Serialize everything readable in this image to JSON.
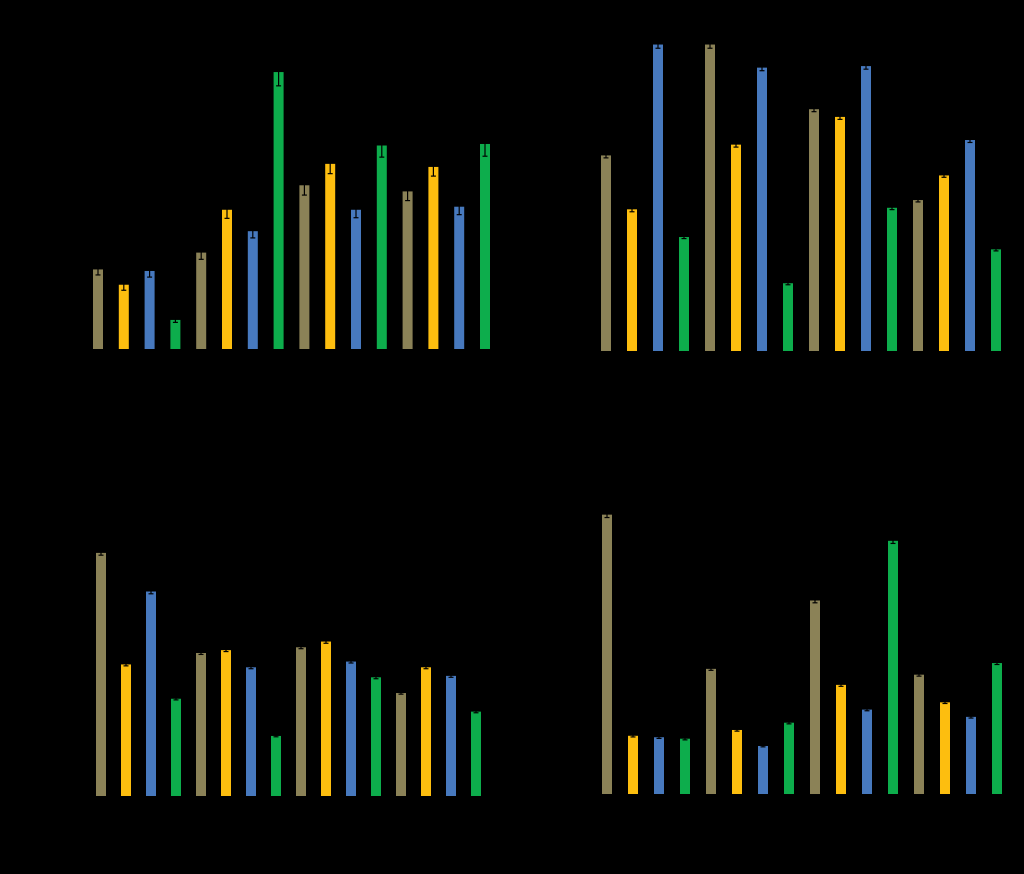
{
  "colors": {
    "background": "#000000",
    "olive": "#8B8257",
    "gold": "#FDBE0F",
    "blue": "#4779BE",
    "green": "#0DAD4C",
    "errorbar": "#000000"
  },
  "chart_data": [
    {
      "type": "bar",
      "panel": "top-left",
      "grid": false,
      "legend": "none",
      "ylim": [
        0,
        100
      ],
      "values": [
        26,
        21,
        25.5,
        9.5,
        31.5,
        45.5,
        38.5,
        90.5,
        53.5,
        60.5,
        45.5,
        66.5,
        51.5,
        59.5,
        46.5,
        67
      ],
      "errors": [
        1.8,
        1.8,
        2,
        0.8,
        2.2,
        2.8,
        2.2,
        4.5,
        3.2,
        3.2,
        2.6,
        3.8,
        3,
        3,
        2.6,
        4
      ],
      "color_keys": [
        "olive",
        "gold",
        "blue",
        "green",
        "olive",
        "gold",
        "blue",
        "green",
        "olive",
        "gold",
        "blue",
        "green",
        "olive",
        "gold",
        "blue",
        "green"
      ]
    },
    {
      "type": "bar",
      "panel": "top-right",
      "grid": false,
      "legend": "none",
      "ylim": [
        0,
        100
      ],
      "values": [
        63.5,
        46,
        99.5,
        37,
        99.5,
        67,
        92,
        22,
        78.5,
        76,
        92.5,
        46.5,
        49,
        57,
        68.5,
        33
      ],
      "errors": [
        0.8,
        0.8,
        1.2,
        0.5,
        1.2,
        0.8,
        1,
        0.5,
        0.8,
        0.8,
        1,
        0.6,
        0.6,
        0.6,
        0.8,
        0.5
      ],
      "color_keys": [
        "olive",
        "gold",
        "blue",
        "green",
        "olive",
        "gold",
        "blue",
        "green",
        "olive",
        "gold",
        "blue",
        "green",
        "olive",
        "gold",
        "blue",
        "green"
      ]
    },
    {
      "type": "bar",
      "panel": "bottom-left",
      "grid": false,
      "legend": "none",
      "ylim": [
        0,
        100
      ],
      "values": [
        85,
        46,
        71.5,
        34,
        50,
        51,
        45,
        21,
        52,
        54,
        47,
        41.5,
        36,
        45,
        42,
        29.5
      ],
      "errors": [
        0.8,
        0.5,
        0.8,
        0.4,
        0.5,
        0.5,
        0.5,
        0.3,
        0.5,
        0.6,
        0.5,
        0.5,
        0.4,
        0.5,
        0.5,
        0.4
      ],
      "color_keys": [
        "olive",
        "gold",
        "blue",
        "green",
        "olive",
        "gold",
        "blue",
        "green",
        "olive",
        "gold",
        "blue",
        "green",
        "olive",
        "gold",
        "blue",
        "green"
      ]
    },
    {
      "type": "bar",
      "panel": "bottom-right",
      "grid": false,
      "legend": "none",
      "ylim": [
        0,
        100
      ],
      "values": [
        96,
        20,
        19.5,
        19,
        43,
        22,
        16.5,
        24.5,
        66.5,
        37.5,
        29,
        87,
        41,
        31.5,
        26.5,
        45
      ],
      "errors": [
        1,
        0.4,
        0.4,
        0.4,
        0.5,
        0.4,
        0.3,
        0.4,
        0.8,
        0.5,
        0.4,
        0.9,
        0.5,
        0.4,
        0.4,
        0.5
      ],
      "color_keys": [
        "olive",
        "gold",
        "blue",
        "green",
        "olive",
        "gold",
        "blue",
        "green",
        "olive",
        "gold",
        "blue",
        "green",
        "olive",
        "gold",
        "blue",
        "green"
      ]
    }
  ]
}
